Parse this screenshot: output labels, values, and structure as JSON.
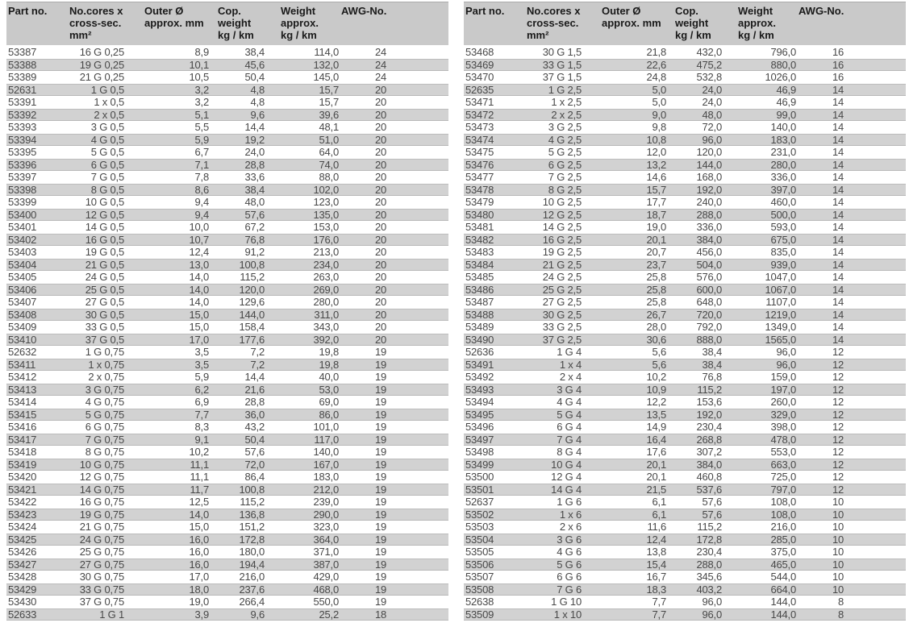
{
  "colors": {
    "header_bg": "#c9c9c9",
    "row_stripe_bg": "#d2d2d2",
    "header_text": "#1a1a1a",
    "data_text": "#484848",
    "page_bg": "#ffffff"
  },
  "headers": {
    "part_no": [
      "Part no."
    ],
    "cores": [
      "No.cores x",
      "cross-sec.",
      "mm²"
    ],
    "outer_diameter": [
      "Outer Ø",
      "approx. mm"
    ],
    "copper_weight": [
      "Cop.",
      "weight",
      "kg / km"
    ],
    "weight": [
      "Weight",
      "approx.",
      "kg / km"
    ],
    "awg": [
      "AWG-No."
    ]
  },
  "tables": {
    "left": {
      "rows": [
        [
          "53387",
          "16 G 0,25",
          "8,9",
          "38,4",
          "114,0",
          "24"
        ],
        [
          "53388",
          "19 G 0,25",
          "10,1",
          "45,6",
          "132,0",
          "24"
        ],
        [
          "53389",
          "21 G 0,25",
          "10,5",
          "50,4",
          "145,0",
          "24"
        ],
        [
          "52631",
          "1 G 0,5",
          "3,2",
          "4,8",
          "15,7",
          "20"
        ],
        [
          "53391",
          "1 x 0,5",
          "3,2",
          "4,8",
          "15,7",
          "20"
        ],
        [
          "53392",
          "2 x 0,5",
          "5,1",
          "9,6",
          "39,6",
          "20"
        ],
        [
          "53393",
          "3 G 0,5",
          "5,5",
          "14,4",
          "48,1",
          "20"
        ],
        [
          "53394",
          "4 G 0,5",
          "5,9",
          "19,2",
          "51,0",
          "20"
        ],
        [
          "53395",
          "5 G 0,5",
          "6,7",
          "24,0",
          "64,0",
          "20"
        ],
        [
          "53396",
          "6 G 0,5",
          "7,1",
          "28,8",
          "74,0",
          "20"
        ],
        [
          "53397",
          "7 G 0,5",
          "7,8",
          "33,6",
          "88,0",
          "20"
        ],
        [
          "53398",
          "8 G 0,5",
          "8,6",
          "38,4",
          "102,0",
          "20"
        ],
        [
          "53399",
          "10 G 0,5",
          "9,4",
          "48,0",
          "123,0",
          "20"
        ],
        [
          "53400",
          "12 G 0,5",
          "9,4",
          "57,6",
          "135,0",
          "20"
        ],
        [
          "53401",
          "14 G 0,5",
          "10,0",
          "67,2",
          "153,0",
          "20"
        ],
        [
          "53402",
          "16 G 0,5",
          "10,7",
          "76,8",
          "176,0",
          "20"
        ],
        [
          "53403",
          "19 G 0,5",
          "12,4",
          "91,2",
          "213,0",
          "20"
        ],
        [
          "53404",
          "21 G 0,5",
          "13,0",
          "100,8",
          "234,0",
          "20"
        ],
        [
          "53405",
          "24 G 0,5",
          "14,0",
          "115,2",
          "263,0",
          "20"
        ],
        [
          "53406",
          "25 G 0,5",
          "14,0",
          "120,0",
          "269,0",
          "20"
        ],
        [
          "53407",
          "27 G 0,5",
          "14,0",
          "129,6",
          "280,0",
          "20"
        ],
        [
          "53408",
          "30 G 0,5",
          "15,0",
          "144,0",
          "311,0",
          "20"
        ],
        [
          "53409",
          "33 G 0,5",
          "15,0",
          "158,4",
          "343,0",
          "20"
        ],
        [
          "53410",
          "37 G 0,5",
          "17,0",
          "177,6",
          "392,0",
          "20"
        ],
        [
          "52632",
          "1 G 0,75",
          "3,5",
          "7,2",
          "19,8",
          "19"
        ],
        [
          "53411",
          "1 x 0,75",
          "3,5",
          "7,2",
          "19,8",
          "19"
        ],
        [
          "53412",
          "2 x 0,75",
          "5,9",
          "14,4",
          "40,0",
          "19"
        ],
        [
          "53413",
          "3 G 0,75",
          "6,2",
          "21,6",
          "53,0",
          "19"
        ],
        [
          "53414",
          "4 G 0,75",
          "6,9",
          "28,8",
          "69,0",
          "19"
        ],
        [
          "53415",
          "5 G 0,75",
          "7,7",
          "36,0",
          "86,0",
          "19"
        ],
        [
          "53416",
          "6 G 0,75",
          "8,3",
          "43,2",
          "101,0",
          "19"
        ],
        [
          "53417",
          "7 G 0,75",
          "9,1",
          "50,4",
          "117,0",
          "19"
        ],
        [
          "53418",
          "8 G 0,75",
          "10,2",
          "57,6",
          "140,0",
          "19"
        ],
        [
          "53419",
          "10 G 0,75",
          "11,1",
          "72,0",
          "167,0",
          "19"
        ],
        [
          "53420",
          "12 G 0,75",
          "11,1",
          "86,4",
          "183,0",
          "19"
        ],
        [
          "53421",
          "14 G 0,75",
          "11,7",
          "100,8",
          "212,0",
          "19"
        ],
        [
          "53422",
          "16 G 0,75",
          "12,5",
          "115,2",
          "239,0",
          "19"
        ],
        [
          "53423",
          "19 G 0,75",
          "14,0",
          "136,8",
          "290,0",
          "19"
        ],
        [
          "53424",
          "21 G 0,75",
          "15,0",
          "151,2",
          "323,0",
          "19"
        ],
        [
          "53425",
          "24 G 0,75",
          "16,0",
          "172,8",
          "364,0",
          "19"
        ],
        [
          "53426",
          "25 G 0,75",
          "16,0",
          "180,0",
          "371,0",
          "19"
        ],
        [
          "53427",
          "27 G 0,75",
          "16,0",
          "194,4",
          "387,0",
          "19"
        ],
        [
          "53428",
          "30 G 0,75",
          "17,0",
          "216,0",
          "429,0",
          "19"
        ],
        [
          "53429",
          "33 G 0,75",
          "18,0",
          "237,6",
          "468,0",
          "19"
        ],
        [
          "53430",
          "37 G 0,75",
          "19,0",
          "266,4",
          "550,0",
          "19"
        ],
        [
          "52633",
          "1 G 1",
          "3,9",
          "9,6",
          "25,2",
          "18"
        ]
      ]
    },
    "right": {
      "rows": [
        [
          "53468",
          "30 G 1,5",
          "21,8",
          "432,0",
          "796,0",
          "16"
        ],
        [
          "53469",
          "33 G 1,5",
          "22,6",
          "475,2",
          "880,0",
          "16"
        ],
        [
          "53470",
          "37 G 1,5",
          "24,8",
          "532,8",
          "1026,0",
          "16"
        ],
        [
          "52635",
          "1 G 2,5",
          "5,0",
          "24,0",
          "46,9",
          "14"
        ],
        [
          "53471",
          "1 x 2,5",
          "5,0",
          "24,0",
          "46,9",
          "14"
        ],
        [
          "53472",
          "2 x 2,5",
          "9,0",
          "48,0",
          "99,0",
          "14"
        ],
        [
          "53473",
          "3 G 2,5",
          "9,8",
          "72,0",
          "140,0",
          "14"
        ],
        [
          "53474",
          "4 G 2,5",
          "10,8",
          "96,0",
          "183,0",
          "14"
        ],
        [
          "53475",
          "5 G 2,5",
          "12,0",
          "120,0",
          "231,0",
          "14"
        ],
        [
          "53476",
          "6 G 2,5",
          "13,2",
          "144,0",
          "280,0",
          "14"
        ],
        [
          "53477",
          "7 G 2,5",
          "14,6",
          "168,0",
          "336,0",
          "14"
        ],
        [
          "53478",
          "8 G 2,5",
          "15,7",
          "192,0",
          "397,0",
          "14"
        ],
        [
          "53479",
          "10 G 2,5",
          "17,7",
          "240,0",
          "460,0",
          "14"
        ],
        [
          "53480",
          "12 G 2,5",
          "18,7",
          "288,0",
          "500,0",
          "14"
        ],
        [
          "53481",
          "14 G 2,5",
          "19,0",
          "336,0",
          "593,0",
          "14"
        ],
        [
          "53482",
          "16 G 2,5",
          "20,1",
          "384,0",
          "675,0",
          "14"
        ],
        [
          "53483",
          "19 G 2,5",
          "20,7",
          "456,0",
          "835,0",
          "14"
        ],
        [
          "53484",
          "21 G 2,5",
          "23,7",
          "504,0",
          "939,0",
          "14"
        ],
        [
          "53485",
          "24 G 2,5",
          "25,8",
          "576,0",
          "1047,0",
          "14"
        ],
        [
          "53486",
          "25 G 2,5",
          "25,8",
          "600,0",
          "1067,0",
          "14"
        ],
        [
          "53487",
          "27 G 2,5",
          "25,8",
          "648,0",
          "1107,0",
          "14"
        ],
        [
          "53488",
          "30 G 2,5",
          "26,7",
          "720,0",
          "1219,0",
          "14"
        ],
        [
          "53489",
          "33 G 2,5",
          "28,0",
          "792,0",
          "1349,0",
          "14"
        ],
        [
          "53490",
          "37 G 2,5",
          "30,6",
          "888,0",
          "1565,0",
          "14"
        ],
        [
          "52636",
          "1 G 4",
          "5,6",
          "38,4",
          "96,0",
          "12"
        ],
        [
          "53491",
          "1 x 4",
          "5,6",
          "38,4",
          "96,0",
          "12"
        ],
        [
          "53492",
          "2 x 4",
          "10,2",
          "76,8",
          "159,0",
          "12"
        ],
        [
          "53493",
          "3 G 4",
          "10,9",
          "115,2",
          "197,0",
          "12"
        ],
        [
          "53494",
          "4 G 4",
          "12,2",
          "153,6",
          "260,0",
          "12"
        ],
        [
          "53495",
          "5 G 4",
          "13,5",
          "192,0",
          "329,0",
          "12"
        ],
        [
          "53496",
          "6 G 4",
          "14,9",
          "230,4",
          "398,0",
          "12"
        ],
        [
          "53497",
          "7 G 4",
          "16,4",
          "268,8",
          "478,0",
          "12"
        ],
        [
          "53498",
          "8 G 4",
          "17,6",
          "307,2",
          "553,0",
          "12"
        ],
        [
          "53499",
          "10 G 4",
          "20,1",
          "384,0",
          "663,0",
          "12"
        ],
        [
          "53500",
          "12 G 4",
          "20,1",
          "460,8",
          "725,0",
          "12"
        ],
        [
          "53501",
          "14 G 4",
          "21,5",
          "537,6",
          "797,0",
          "12"
        ],
        [
          "52637",
          "1 G 6",
          "6,1",
          "57,6",
          "108,0",
          "10"
        ],
        [
          "53502",
          "1 x 6",
          "6,1",
          "57,6",
          "108,0",
          "10"
        ],
        [
          "53503",
          "2 x 6",
          "11,6",
          "115,2",
          "216,0",
          "10"
        ],
        [
          "53504",
          "3 G 6",
          "12,4",
          "172,8",
          "285,0",
          "10"
        ],
        [
          "53505",
          "4 G 6",
          "13,8",
          "230,4",
          "375,0",
          "10"
        ],
        [
          "53506",
          "5 G 6",
          "15,4",
          "288,0",
          "465,0",
          "10"
        ],
        [
          "53507",
          "6 G 6",
          "16,7",
          "345,6",
          "544,0",
          "10"
        ],
        [
          "53508",
          "7 G 6",
          "18,3",
          "403,2",
          "664,0",
          "10"
        ],
        [
          "52638",
          "1 G 10",
          "7,7",
          "96,0",
          "144,0",
          "8"
        ],
        [
          "53509",
          "1 x 10",
          "7,7",
          "96,0",
          "144,0",
          "8"
        ]
      ]
    }
  }
}
